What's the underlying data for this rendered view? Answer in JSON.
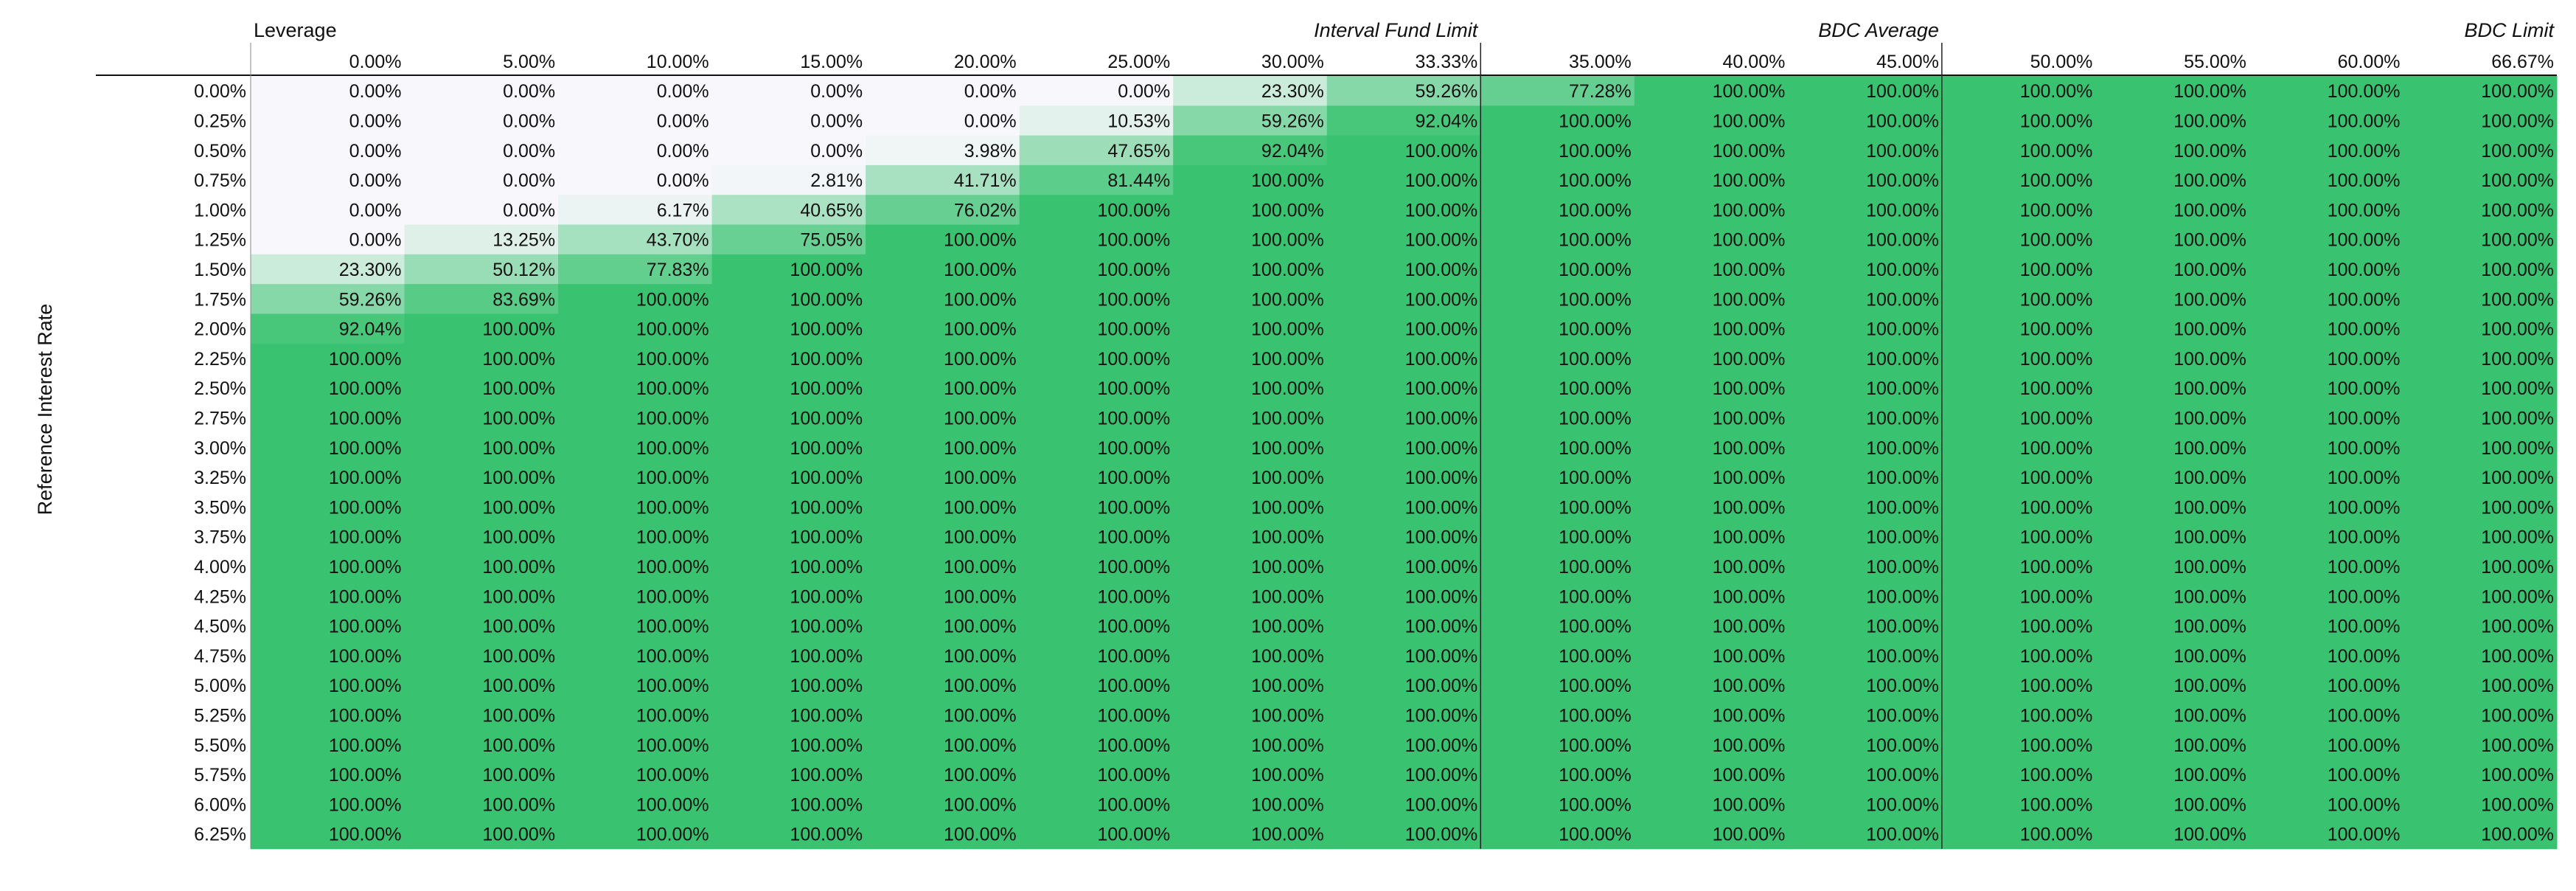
{
  "chart_data": {
    "type": "heatmap",
    "col_axis_label": "Leverage",
    "row_axis_label": "Reference Interest Rate",
    "columns": [
      "0.00%",
      "5.00%",
      "10.00%",
      "15.00%",
      "20.00%",
      "25.00%",
      "30.00%",
      "33.33%",
      "35.00%",
      "40.00%",
      "45.00%",
      "50.00%",
      "55.00%",
      "60.00%",
      "66.67%"
    ],
    "column_markers": [
      {
        "column": "33.33%",
        "label": "Interval Fund Limit"
      },
      {
        "column": "45.00%",
        "label": "BDC Average"
      },
      {
        "column": "66.67%",
        "label": "BDC Limit"
      }
    ],
    "rows": [
      "0.00%",
      "0.25%",
      "0.50%",
      "0.75%",
      "1.00%",
      "1.25%",
      "1.50%",
      "1.75%",
      "2.00%",
      "2.25%",
      "2.50%",
      "2.75%",
      "3.00%",
      "3.25%",
      "3.50%",
      "3.75%",
      "4.00%",
      "4.25%",
      "4.50%",
      "4.75%",
      "5.00%",
      "5.25%",
      "5.50%",
      "5.75%",
      "6.00%",
      "6.25%"
    ],
    "values": [
      [
        0,
        0,
        0,
        0,
        0,
        0,
        23.3,
        59.26,
        77.28,
        100,
        100,
        100,
        100,
        100,
        100
      ],
      [
        0,
        0,
        0,
        0,
        0,
        10.53,
        59.26,
        92.04,
        100,
        100,
        100,
        100,
        100,
        100,
        100
      ],
      [
        0,
        0,
        0,
        0,
        3.98,
        47.65,
        92.04,
        100,
        100,
        100,
        100,
        100,
        100,
        100,
        100
      ],
      [
        0,
        0,
        0,
        2.81,
        41.71,
        81.44,
        100,
        100,
        100,
        100,
        100,
        100,
        100,
        100,
        100
      ],
      [
        0,
        0,
        6.17,
        40.65,
        76.02,
        100,
        100,
        100,
        100,
        100,
        100,
        100,
        100,
        100,
        100
      ],
      [
        0,
        13.25,
        43.7,
        75.05,
        100,
        100,
        100,
        100,
        100,
        100,
        100,
        100,
        100,
        100,
        100
      ],
      [
        23.3,
        50.12,
        77.83,
        100,
        100,
        100,
        100,
        100,
        100,
        100,
        100,
        100,
        100,
        100,
        100
      ],
      [
        59.26,
        83.69,
        100,
        100,
        100,
        100,
        100,
        100,
        100,
        100,
        100,
        100,
        100,
        100,
        100
      ],
      [
        92.04,
        100,
        100,
        100,
        100,
        100,
        100,
        100,
        100,
        100,
        100,
        100,
        100,
        100,
        100
      ],
      [
        100,
        100,
        100,
        100,
        100,
        100,
        100,
        100,
        100,
        100,
        100,
        100,
        100,
        100,
        100
      ],
      [
        100,
        100,
        100,
        100,
        100,
        100,
        100,
        100,
        100,
        100,
        100,
        100,
        100,
        100,
        100
      ],
      [
        100,
        100,
        100,
        100,
        100,
        100,
        100,
        100,
        100,
        100,
        100,
        100,
        100,
        100,
        100
      ],
      [
        100,
        100,
        100,
        100,
        100,
        100,
        100,
        100,
        100,
        100,
        100,
        100,
        100,
        100,
        100
      ],
      [
        100,
        100,
        100,
        100,
        100,
        100,
        100,
        100,
        100,
        100,
        100,
        100,
        100,
        100,
        100
      ],
      [
        100,
        100,
        100,
        100,
        100,
        100,
        100,
        100,
        100,
        100,
        100,
        100,
        100,
        100,
        100
      ],
      [
        100,
        100,
        100,
        100,
        100,
        100,
        100,
        100,
        100,
        100,
        100,
        100,
        100,
        100,
        100
      ],
      [
        100,
        100,
        100,
        100,
        100,
        100,
        100,
        100,
        100,
        100,
        100,
        100,
        100,
        100,
        100
      ],
      [
        100,
        100,
        100,
        100,
        100,
        100,
        100,
        100,
        100,
        100,
        100,
        100,
        100,
        100,
        100
      ],
      [
        100,
        100,
        100,
        100,
        100,
        100,
        100,
        100,
        100,
        100,
        100,
        100,
        100,
        100,
        100
      ],
      [
        100,
        100,
        100,
        100,
        100,
        100,
        100,
        100,
        100,
        100,
        100,
        100,
        100,
        100,
        100
      ],
      [
        100,
        100,
        100,
        100,
        100,
        100,
        100,
        100,
        100,
        100,
        100,
        100,
        100,
        100,
        100
      ],
      [
        100,
        100,
        100,
        100,
        100,
        100,
        100,
        100,
        100,
        100,
        100,
        100,
        100,
        100,
        100
      ],
      [
        100,
        100,
        100,
        100,
        100,
        100,
        100,
        100,
        100,
        100,
        100,
        100,
        100,
        100,
        100
      ],
      [
        100,
        100,
        100,
        100,
        100,
        100,
        100,
        100,
        100,
        100,
        100,
        100,
        100,
        100,
        100
      ],
      [
        100,
        100,
        100,
        100,
        100,
        100,
        100,
        100,
        100,
        100,
        100,
        100,
        100,
        100,
        100
      ],
      [
        100,
        100,
        100,
        100,
        100,
        100,
        100,
        100,
        100,
        100,
        100,
        100,
        100,
        100,
        100
      ]
    ],
    "value_format": "percent, 2 decimals",
    "color_scale": {
      "low": "#f8f7fc",
      "high": "#39c370",
      "min": 0,
      "max": 100
    }
  }
}
